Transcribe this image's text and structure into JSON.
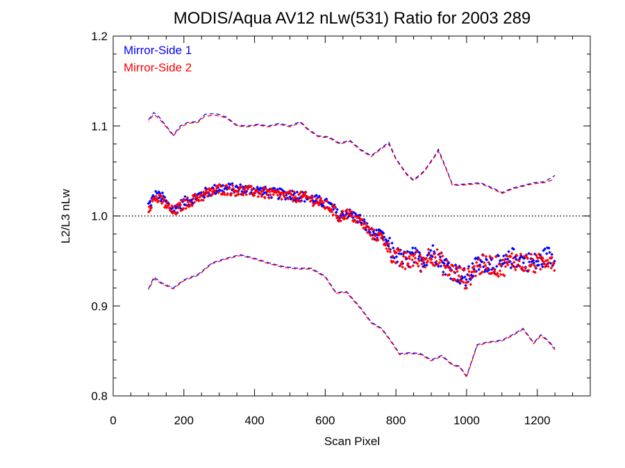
{
  "chart_data": {
    "type": "scatter",
    "title": "MODIS/Aqua AV12 nLw(531) Ratio for 2003 289",
    "xlabel": "Scan Pixel",
    "ylabel": "L2/L3 nLw",
    "xlim": [
      0,
      1350
    ],
    "ylim": [
      0.8,
      1.2
    ],
    "xticks": [
      0,
      200,
      400,
      600,
      800,
      1000,
      1200
    ],
    "yticks": [
      0.8,
      0.9,
      1.0,
      1.1,
      1.2
    ],
    "xtick_labels": [
      "0",
      "200",
      "400",
      "600",
      "800",
      "1000",
      "1200"
    ],
    "ytick_labels": [
      "0.8",
      "0.9",
      "1.0",
      "1.1",
      "1.2"
    ],
    "reference_line": 1.0,
    "legend_position": "top-left",
    "legend": [
      {
        "label": "Mirror-Side 1",
        "color": "#0000ff"
      },
      {
        "label": "Mirror-Side 2",
        "color": "#ff0000"
      }
    ],
    "series": [
      {
        "name": "Mirror-Side 1",
        "color": "#0000ff",
        "mean": [
          [
            100,
            1.012
          ],
          [
            120,
            1.023
          ],
          [
            140,
            1.02
          ],
          [
            160,
            1.01
          ],
          [
            170,
            1.006
          ],
          [
            200,
            1.015
          ],
          [
            250,
            1.024
          ],
          [
            300,
            1.031
          ],
          [
            350,
            1.03
          ],
          [
            400,
            1.029
          ],
          [
            450,
            1.025
          ],
          [
            500,
            1.024
          ],
          [
            550,
            1.021
          ],
          [
            600,
            1.014
          ],
          [
            620,
            1.01
          ],
          [
            640,
            0.999
          ],
          [
            660,
            1.004
          ],
          [
            700,
            0.996
          ],
          [
            730,
            0.981
          ],
          [
            760,
            0.978
          ],
          [
            790,
            0.96
          ],
          [
            820,
            0.95
          ],
          [
            850,
            0.955
          ],
          [
            870,
            0.95
          ],
          [
            900,
            0.96
          ],
          [
            920,
            0.955
          ],
          [
            940,
            0.945
          ],
          [
            960,
            0.94
          ],
          [
            980,
            0.935
          ],
          [
            1000,
            0.93
          ],
          [
            1030,
            0.946
          ],
          [
            1060,
            0.949
          ],
          [
            1100,
            0.944
          ],
          [
            1130,
            0.954
          ],
          [
            1160,
            0.95
          ],
          [
            1200,
            0.948
          ],
          [
            1230,
            0.956
          ],
          [
            1250,
            0.952
          ]
        ],
        "upper": [
          [
            100,
            1.107
          ],
          [
            115,
            1.115
          ],
          [
            130,
            1.11
          ],
          [
            150,
            1.1
          ],
          [
            170,
            1.09
          ],
          [
            190,
            1.1
          ],
          [
            210,
            1.104
          ],
          [
            240,
            1.105
          ],
          [
            260,
            1.113
          ],
          [
            290,
            1.114
          ],
          [
            320,
            1.11
          ],
          [
            350,
            1.101
          ],
          [
            380,
            1.1
          ],
          [
            410,
            1.102
          ],
          [
            440,
            1.1
          ],
          [
            470,
            1.103
          ],
          [
            500,
            1.1
          ],
          [
            530,
            1.105
          ],
          [
            550,
            1.097
          ],
          [
            580,
            1.089
          ],
          [
            610,
            1.088
          ],
          [
            640,
            1.081
          ],
          [
            670,
            1.084
          ],
          [
            700,
            1.074
          ],
          [
            730,
            1.067
          ],
          [
            760,
            1.076
          ],
          [
            780,
            1.082
          ],
          [
            800,
            1.064
          ],
          [
            830,
            1.047
          ],
          [
            850,
            1.04
          ],
          [
            880,
            1.05
          ],
          [
            910,
            1.067
          ],
          [
            920,
            1.074
          ],
          [
            940,
            1.055
          ],
          [
            960,
            1.035
          ],
          [
            980,
            1.035
          ],
          [
            1010,
            1.036
          ],
          [
            1040,
            1.037
          ],
          [
            1080,
            1.03
          ],
          [
            1100,
            1.026
          ],
          [
            1130,
            1.031
          ],
          [
            1160,
            1.034
          ],
          [
            1190,
            1.037
          ],
          [
            1220,
            1.038
          ],
          [
            1250,
            1.045
          ]
        ],
        "lower": [
          [
            100,
            0.919
          ],
          [
            115,
            0.932
          ],
          [
            140,
            0.925
          ],
          [
            170,
            0.92
          ],
          [
            200,
            0.929
          ],
          [
            240,
            0.935
          ],
          [
            280,
            0.948
          ],
          [
            320,
            0.953
          ],
          [
            360,
            0.957
          ],
          [
            400,
            0.953
          ],
          [
            440,
            0.948
          ],
          [
            480,
            0.944
          ],
          [
            520,
            0.942
          ],
          [
            560,
            0.942
          ],
          [
            600,
            0.933
          ],
          [
            630,
            0.915
          ],
          [
            660,
            0.916
          ],
          [
            700,
            0.898
          ],
          [
            730,
            0.882
          ],
          [
            760,
            0.875
          ],
          [
            790,
            0.859
          ],
          [
            810,
            0.847
          ],
          [
            840,
            0.848
          ],
          [
            870,
            0.847
          ],
          [
            900,
            0.84
          ],
          [
            930,
            0.845
          ],
          [
            960,
            0.835
          ],
          [
            980,
            0.833
          ],
          [
            1000,
            0.822
          ],
          [
            1030,
            0.857
          ],
          [
            1060,
            0.86
          ],
          [
            1100,
            0.862
          ],
          [
            1130,
            0.868
          ],
          [
            1160,
            0.875
          ],
          [
            1190,
            0.859
          ],
          [
            1210,
            0.868
          ],
          [
            1230,
            0.862
          ],
          [
            1250,
            0.853
          ]
        ]
      },
      {
        "name": "Mirror-Side 2",
        "color": "#ff0000",
        "mean": [
          [
            100,
            1.01
          ],
          [
            120,
            1.02
          ],
          [
            140,
            1.016
          ],
          [
            160,
            1.008
          ],
          [
            170,
            1.004
          ],
          [
            200,
            1.013
          ],
          [
            250,
            1.022
          ],
          [
            300,
            1.03
          ],
          [
            350,
            1.028
          ],
          [
            400,
            1.027
          ],
          [
            450,
            1.024
          ],
          [
            500,
            1.022
          ],
          [
            550,
            1.02
          ],
          [
            600,
            1.012
          ],
          [
            620,
            1.008
          ],
          [
            640,
            0.998
          ],
          [
            660,
            1.003
          ],
          [
            700,
            0.994
          ],
          [
            730,
            0.98
          ],
          [
            760,
            0.976
          ],
          [
            790,
            0.958
          ],
          [
            820,
            0.948
          ],
          [
            850,
            0.953
          ],
          [
            870,
            0.948
          ],
          [
            900,
            0.958
          ],
          [
            920,
            0.952
          ],
          [
            940,
            0.942
          ],
          [
            960,
            0.938
          ],
          [
            980,
            0.934
          ],
          [
            1000,
            0.929
          ],
          [
            1030,
            0.944
          ],
          [
            1060,
            0.947
          ],
          [
            1100,
            0.942
          ],
          [
            1130,
            0.952
          ],
          [
            1160,
            0.948
          ],
          [
            1200,
            0.946
          ],
          [
            1230,
            0.954
          ],
          [
            1250,
            0.95
          ]
        ],
        "upper": [
          [
            100,
            1.105
          ],
          [
            115,
            1.113
          ],
          [
            130,
            1.108
          ],
          [
            150,
            1.099
          ],
          [
            170,
            1.089
          ],
          [
            190,
            1.098
          ],
          [
            210,
            1.103
          ],
          [
            240,
            1.104
          ],
          [
            260,
            1.111
          ],
          [
            290,
            1.112
          ],
          [
            320,
            1.109
          ],
          [
            350,
            1.1
          ],
          [
            380,
            1.099
          ],
          [
            410,
            1.101
          ],
          [
            440,
            1.099
          ],
          [
            470,
            1.102
          ],
          [
            500,
            1.099
          ],
          [
            530,
            1.104
          ],
          [
            550,
            1.096
          ],
          [
            580,
            1.088
          ],
          [
            610,
            1.087
          ],
          [
            640,
            1.08
          ],
          [
            670,
            1.083
          ],
          [
            700,
            1.073
          ],
          [
            730,
            1.066
          ],
          [
            760,
            1.075
          ],
          [
            780,
            1.08
          ],
          [
            800,
            1.063
          ],
          [
            830,
            1.046
          ],
          [
            850,
            1.039
          ],
          [
            880,
            1.049
          ],
          [
            910,
            1.066
          ],
          [
            920,
            1.072
          ],
          [
            940,
            1.054
          ],
          [
            960,
            1.034
          ],
          [
            980,
            1.034
          ],
          [
            1010,
            1.035
          ],
          [
            1040,
            1.036
          ],
          [
            1080,
            1.029
          ],
          [
            1100,
            1.025
          ],
          [
            1130,
            1.03
          ],
          [
            1160,
            1.033
          ],
          [
            1190,
            1.036
          ],
          [
            1220,
            1.037
          ],
          [
            1250,
            1.041
          ]
        ],
        "lower": [
          [
            100,
            0.918
          ],
          [
            115,
            0.93
          ],
          [
            140,
            0.924
          ],
          [
            170,
            0.919
          ],
          [
            200,
            0.928
          ],
          [
            240,
            0.934
          ],
          [
            280,
            0.947
          ],
          [
            320,
            0.952
          ],
          [
            360,
            0.956
          ],
          [
            400,
            0.952
          ],
          [
            440,
            0.947
          ],
          [
            480,
            0.943
          ],
          [
            520,
            0.941
          ],
          [
            560,
            0.941
          ],
          [
            600,
            0.932
          ],
          [
            630,
            0.914
          ],
          [
            660,
            0.915
          ],
          [
            700,
            0.897
          ],
          [
            730,
            0.881
          ],
          [
            760,
            0.874
          ],
          [
            790,
            0.858
          ],
          [
            810,
            0.846
          ],
          [
            840,
            0.847
          ],
          [
            870,
            0.846
          ],
          [
            900,
            0.839
          ],
          [
            930,
            0.844
          ],
          [
            960,
            0.834
          ],
          [
            980,
            0.832
          ],
          [
            1000,
            0.821
          ],
          [
            1030,
            0.856
          ],
          [
            1060,
            0.859
          ],
          [
            1100,
            0.861
          ],
          [
            1130,
            0.867
          ],
          [
            1160,
            0.874
          ],
          [
            1190,
            0.858
          ],
          [
            1210,
            0.867
          ],
          [
            1230,
            0.861
          ],
          [
            1250,
            0.851
          ]
        ]
      }
    ]
  }
}
